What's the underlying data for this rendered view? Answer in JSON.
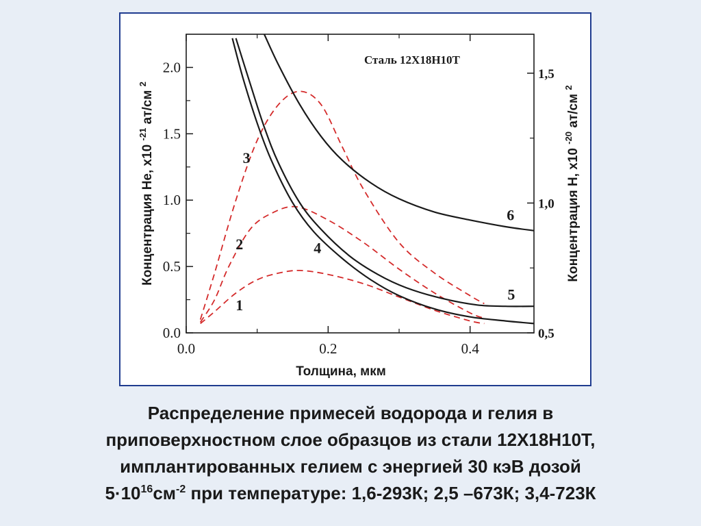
{
  "colors": {
    "background": "#e8eef6",
    "frame": "#1f3b8f",
    "solid": "#1a1a1a",
    "dashed": "#d42a2a"
  },
  "chart_data": {
    "type": "line",
    "inset_title": "Сталь 12Х18Н10Т",
    "xlabel": "Толщина, мкм",
    "ylabel_left": "Концентрация He, x10 -21ат/см2",
    "ylabel_left_parts": {
      "main": "Концентрация He, x10",
      "exp": "-21",
      "unit": "ат/см",
      "unit_exp": "2"
    },
    "ylabel_right": "Концентрация H, x10 -20ат/см2",
    "ylabel_right_parts": {
      "main": "Концентрация H, x10",
      "exp": "-20",
      "unit": "ат/см",
      "unit_exp": "2"
    },
    "xlim": [
      0,
      0.49
    ],
    "ylim_left": [
      0,
      2.25
    ],
    "ylim_right": [
      0.5,
      1.65
    ],
    "x_ticks": [
      "0.0",
      "0.2",
      "0.4"
    ],
    "x_tick_values": [
      0,
      0.2,
      0.4
    ],
    "y_left_ticks": [
      "0.0",
      "0.5",
      "1.0",
      "1.5",
      "2.0"
    ],
    "y_left_tick_values": [
      0,
      0.5,
      1.0,
      1.5,
      2.0
    ],
    "y_right_ticks": [
      "0,5",
      "1,0",
      "1,5"
    ],
    "y_right_tick_values": [
      0.5,
      1.0,
      1.5
    ],
    "grid": false,
    "series": [
      {
        "name": "1",
        "axis": "left",
        "style": "dashed",
        "x": [
          0.02,
          0.04,
          0.07,
          0.1,
          0.13,
          0.16,
          0.2,
          0.25,
          0.3,
          0.35,
          0.4,
          0.42
        ],
        "y": [
          0.07,
          0.16,
          0.3,
          0.4,
          0.45,
          0.47,
          0.44,
          0.37,
          0.27,
          0.17,
          0.09,
          0.07
        ]
      },
      {
        "name": "2",
        "axis": "left",
        "style": "dashed",
        "x": [
          0.02,
          0.04,
          0.06,
          0.09,
          0.12,
          0.155,
          0.2,
          0.25,
          0.3,
          0.35,
          0.4,
          0.42
        ],
        "y": [
          0.08,
          0.25,
          0.5,
          0.78,
          0.9,
          0.95,
          0.85,
          0.68,
          0.48,
          0.3,
          0.15,
          0.11
        ]
      },
      {
        "name": "3",
        "axis": "left",
        "style": "dashed",
        "x": [
          0.02,
          0.04,
          0.07,
          0.1,
          0.13,
          0.16,
          0.19,
          0.22,
          0.25,
          0.3,
          0.35,
          0.4,
          0.42
        ],
        "y": [
          0.1,
          0.45,
          1.0,
          1.45,
          1.72,
          1.82,
          1.72,
          1.4,
          1.08,
          0.68,
          0.45,
          0.28,
          0.22
        ]
      },
      {
        "name": "4",
        "axis": "left",
        "style": "solid",
        "x": [
          0.065,
          0.08,
          0.1,
          0.12,
          0.15,
          0.18,
          0.22,
          0.26,
          0.3,
          0.35,
          0.4,
          0.45,
          0.49
        ],
        "y": [
          2.22,
          1.92,
          1.58,
          1.3,
          0.98,
          0.76,
          0.56,
          0.4,
          0.28,
          0.18,
          0.12,
          0.09,
          0.07
        ]
      },
      {
        "name": "5",
        "axis": "left",
        "style": "solid",
        "x": [
          0.07,
          0.09,
          0.11,
          0.13,
          0.16,
          0.19,
          0.23,
          0.27,
          0.31,
          0.36,
          0.41,
          0.45,
          0.49
        ],
        "y": [
          2.22,
          1.88,
          1.55,
          1.28,
          0.98,
          0.78,
          0.58,
          0.44,
          0.34,
          0.26,
          0.21,
          0.2,
          0.2
        ]
      },
      {
        "name": "6",
        "axis": "left",
        "style": "solid",
        "x": [
          0.11,
          0.13,
          0.16,
          0.19,
          0.22,
          0.26,
          0.3,
          0.35,
          0.4,
          0.45,
          0.49
        ],
        "y": [
          2.25,
          2.02,
          1.72,
          1.48,
          1.3,
          1.13,
          1.01,
          0.91,
          0.85,
          0.8,
          0.77
        ]
      }
    ],
    "curve_labels": [
      {
        "text": "1",
        "x": 0.075,
        "y": 0.17
      },
      {
        "text": "2",
        "x": 0.075,
        "y": 0.63
      },
      {
        "text": "3",
        "x": 0.085,
        "y": 1.28
      },
      {
        "text": "4",
        "x": 0.185,
        "y": 0.6
      },
      {
        "text": "5",
        "x": 0.458,
        "y": 0.25
      },
      {
        "text": "6",
        "x": 0.457,
        "y": 0.85
      }
    ]
  },
  "caption": {
    "line1": "Распределение примесей водорода и гелия в",
    "line2": "приповерхностном слое образцов из стали 12Х18Н10Т,",
    "line3": "имплантированных гелием с энергией 30 кэВ дозой",
    "line4_a": "5·10",
    "line4_sup1": "16",
    "line4_b": "см",
    "line4_sup2": "-2",
    "line4_c": " при температуре: 1,6-293К; 2,5 –673К; 3,4-723К"
  }
}
